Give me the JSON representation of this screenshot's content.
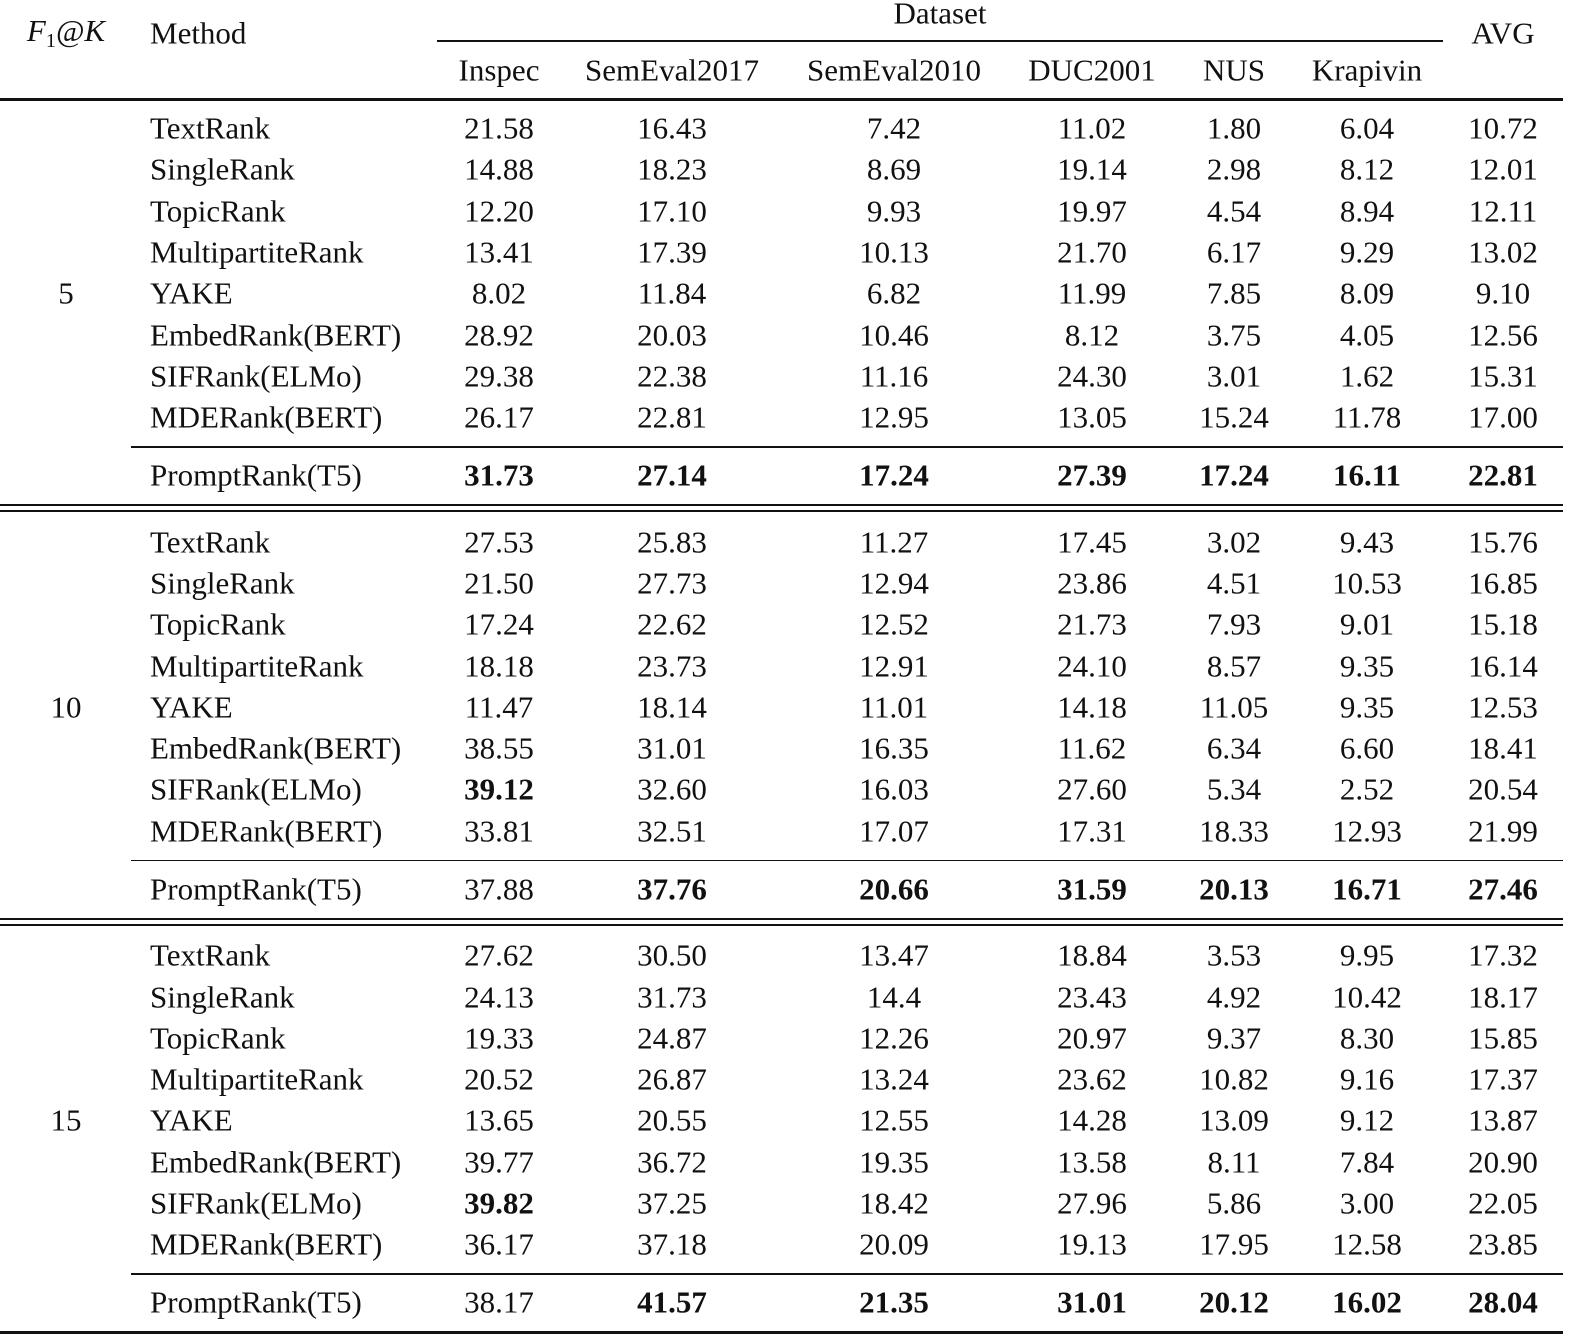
{
  "header": {
    "k_main": "F",
    "k_sub": "1",
    "k_rest": "@K",
    "method": "Method",
    "group": "Dataset",
    "datasets": [
      "Inspec",
      "SemEval2017",
      "SemEval2010",
      "DUC2001",
      "NUS",
      "Krapivin"
    ],
    "avg": "AVG"
  },
  "groups": [
    {
      "k": "5",
      "rows": [
        {
          "method": "TextRank",
          "values": [
            "21.58",
            "16.43",
            "7.42",
            "11.02",
            "1.80",
            "6.04",
            "10.72"
          ],
          "bold": []
        },
        {
          "method": "SingleRank",
          "values": [
            "14.88",
            "18.23",
            "8.69",
            "19.14",
            "2.98",
            "8.12",
            "12.01"
          ],
          "bold": []
        },
        {
          "method": "TopicRank",
          "values": [
            "12.20",
            "17.10",
            "9.93",
            "19.97",
            "4.54",
            "8.94",
            "12.11"
          ],
          "bold": []
        },
        {
          "method": "MultipartiteRank",
          "values": [
            "13.41",
            "17.39",
            "10.13",
            "21.70",
            "6.17",
            "9.29",
            "13.02"
          ],
          "bold": []
        },
        {
          "method": "YAKE",
          "values": [
            "8.02",
            "11.84",
            "6.82",
            "11.99",
            "7.85",
            "8.09",
            "9.10"
          ],
          "bold": []
        },
        {
          "method": "EmbedRank(BERT)",
          "values": [
            "28.92",
            "20.03",
            "10.46",
            "8.12",
            "3.75",
            "4.05",
            "12.56"
          ],
          "bold": []
        },
        {
          "method": "SIFRank(ELMo)",
          "values": [
            "29.38",
            "22.38",
            "11.16",
            "24.30",
            "3.01",
            "1.62",
            "15.31"
          ],
          "bold": []
        },
        {
          "method": "MDERank(BERT)",
          "values": [
            "26.17",
            "22.81",
            "12.95",
            "13.05",
            "15.24",
            "11.78",
            "17.00"
          ],
          "bold": []
        },
        {
          "method": "PromptRank(T5)",
          "values": [
            "31.73",
            "27.14",
            "17.24",
            "27.39",
            "17.24",
            "16.11",
            "22.81"
          ],
          "bold": [
            0,
            1,
            2,
            3,
            4,
            5,
            6
          ]
        }
      ]
    },
    {
      "k": "10",
      "rows": [
        {
          "method": "TextRank",
          "values": [
            "27.53",
            "25.83",
            "11.27",
            "17.45",
            "3.02",
            "9.43",
            "15.76"
          ],
          "bold": []
        },
        {
          "method": "SingleRank",
          "values": [
            "21.50",
            "27.73",
            "12.94",
            "23.86",
            "4.51",
            "10.53",
            "16.85"
          ],
          "bold": []
        },
        {
          "method": "TopicRank",
          "values": [
            "17.24",
            "22.62",
            "12.52",
            "21.73",
            "7.93",
            "9.01",
            "15.18"
          ],
          "bold": []
        },
        {
          "method": "MultipartiteRank",
          "values": [
            "18.18",
            "23.73",
            "12.91",
            "24.10",
            "8.57",
            "9.35",
            "16.14"
          ],
          "bold": []
        },
        {
          "method": "YAKE",
          "values": [
            "11.47",
            "18.14",
            "11.01",
            "14.18",
            "11.05",
            "9.35",
            "12.53"
          ],
          "bold": []
        },
        {
          "method": "EmbedRank(BERT)",
          "values": [
            "38.55",
            "31.01",
            "16.35",
            "11.62",
            "6.34",
            "6.60",
            "18.41"
          ],
          "bold": []
        },
        {
          "method": "SIFRank(ELMo)",
          "values": [
            "39.12",
            "32.60",
            "16.03",
            "27.60",
            "5.34",
            "2.52",
            "20.54"
          ],
          "bold": [
            0
          ]
        },
        {
          "method": "MDERank(BERT)",
          "values": [
            "33.81",
            "32.51",
            "17.07",
            "17.31",
            "18.33",
            "12.93",
            "21.99"
          ],
          "bold": []
        },
        {
          "method": "PromptRank(T5)",
          "values": [
            "37.88",
            "37.76",
            "20.66",
            "31.59",
            "20.13",
            "16.71",
            "27.46"
          ],
          "bold": [
            1,
            2,
            3,
            4,
            5,
            6
          ]
        }
      ]
    },
    {
      "k": "15",
      "rows": [
        {
          "method": "TextRank",
          "values": [
            "27.62",
            "30.50",
            "13.47",
            "18.84",
            "3.53",
            "9.95",
            "17.32"
          ],
          "bold": []
        },
        {
          "method": "SingleRank",
          "values": [
            "24.13",
            "31.73",
            "14.4",
            "23.43",
            "4.92",
            "10.42",
            "18.17"
          ],
          "bold": []
        },
        {
          "method": "TopicRank",
          "values": [
            "19.33",
            "24.87",
            "12.26",
            "20.97",
            "9.37",
            "8.30",
            "15.85"
          ],
          "bold": []
        },
        {
          "method": "MultipartiteRank",
          "values": [
            "20.52",
            "26.87",
            "13.24",
            "23.62",
            "10.82",
            "9.16",
            "17.37"
          ],
          "bold": []
        },
        {
          "method": "YAKE",
          "values": [
            "13.65",
            "20.55",
            "12.55",
            "14.28",
            "13.09",
            "9.12",
            "13.87"
          ],
          "bold": []
        },
        {
          "method": "EmbedRank(BERT)",
          "values": [
            "39.77",
            "36.72",
            "19.35",
            "13.58",
            "8.11",
            "7.84",
            "20.90"
          ],
          "bold": []
        },
        {
          "method": "SIFRank(ELMo)",
          "values": [
            "39.82",
            "37.25",
            "18.42",
            "27.96",
            "5.86",
            "3.00",
            "22.05"
          ],
          "bold": [
            0
          ]
        },
        {
          "method": "MDERank(BERT)",
          "values": [
            "36.17",
            "37.18",
            "20.09",
            "19.13",
            "17.95",
            "12.58",
            "23.85"
          ],
          "bold": []
        },
        {
          "method": "PromptRank(T5)",
          "values": [
            "38.17",
            "41.57",
            "21.35",
            "31.01",
            "20.12",
            "16.02",
            "28.04"
          ],
          "bold": [
            1,
            2,
            3,
            4,
            5,
            6
          ]
        }
      ]
    }
  ]
}
